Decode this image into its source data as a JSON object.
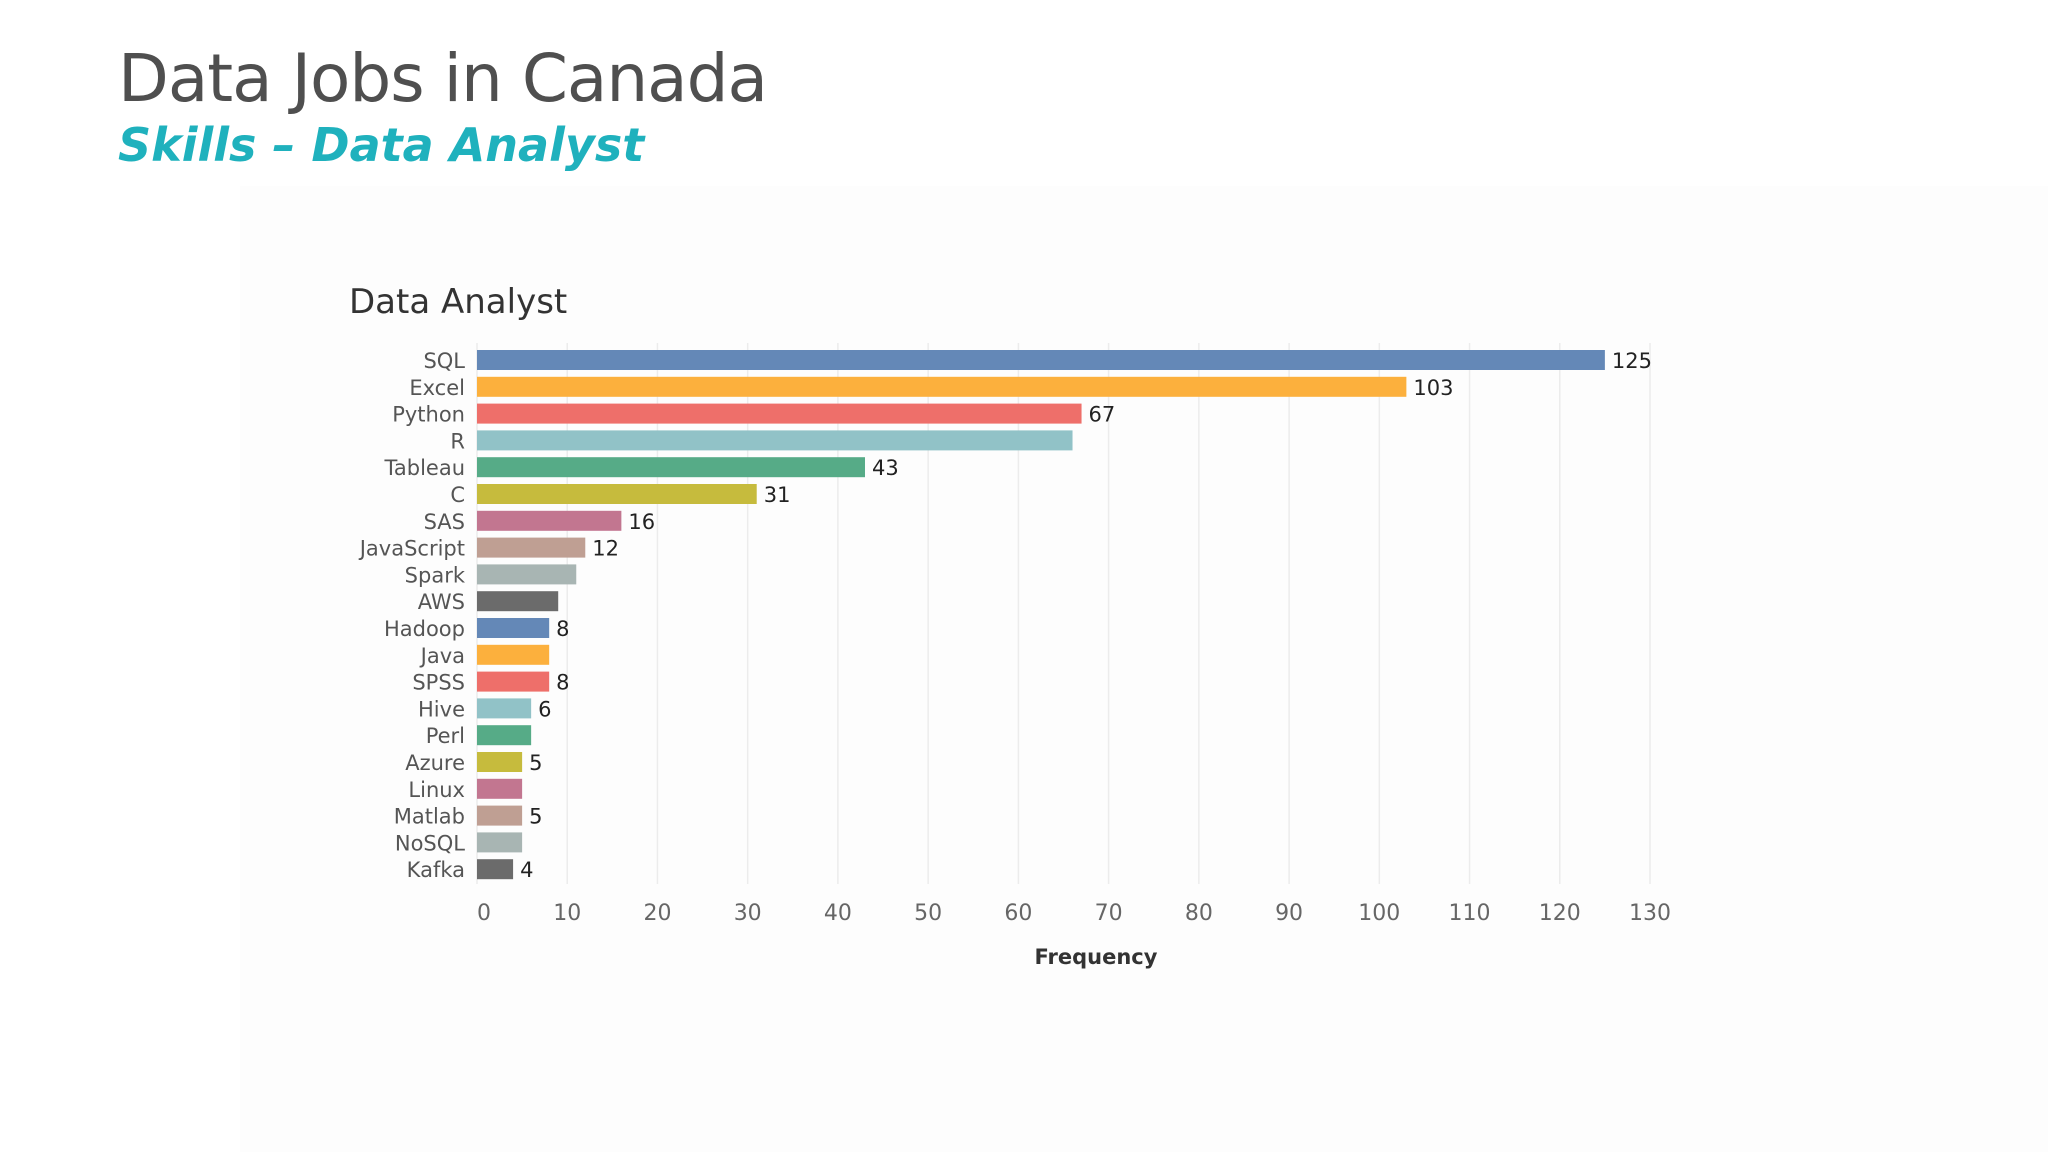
{
  "slide": {
    "title": "Data Jobs in Canada",
    "subtitle": "Skills – Data Analyst"
  },
  "colors": {
    "title": "#4f4f4f",
    "subtitle": "#1fb1bd",
    "palette": [
      "#6488b7",
      "#fcb03d",
      "#ee6f6a",
      "#91c2c7",
      "#56ab87",
      "#c6bb3d",
      "#c27690",
      "#bf9f93",
      "#a8b5b3",
      "#6b6b6b"
    ]
  },
  "chart_data": {
    "type": "bar",
    "orientation": "horizontal",
    "title": "Data Analyst",
    "xlabel": "Frequency",
    "ylabel": "",
    "xlim": [
      0,
      130
    ],
    "xticks": [
      0,
      10,
      20,
      30,
      40,
      50,
      60,
      70,
      80,
      90,
      100,
      110,
      120,
      130
    ],
    "grid": "vertical",
    "categories": [
      "SQL",
      "Excel",
      "Python",
      "R",
      "Tableau",
      "C",
      "SAS",
      "JavaScript",
      "Spark",
      "AWS",
      "Hadoop",
      "Java",
      "SPSS",
      "Hive",
      "Perl",
      "Azure",
      "Linux",
      "Matlab",
      "NoSQL",
      "Kafka"
    ],
    "values": [
      125,
      103,
      67,
      66,
      43,
      31,
      16,
      12,
      11,
      9,
      8,
      8,
      8,
      6,
      6,
      5,
      5,
      5,
      5,
      4
    ],
    "data_labels": [
      "125",
      "103",
      "67",
      "",
      "43",
      "31",
      "16",
      "12",
      "",
      "",
      "8",
      "",
      "8",
      "6",
      "",
      "5",
      "",
      "5",
      "",
      "4"
    ],
    "colors": [
      "#6488b7",
      "#fcb03d",
      "#ee6f6a",
      "#91c2c7",
      "#56ab87",
      "#c6bb3d",
      "#c27690",
      "#bf9f93",
      "#a8b5b3",
      "#6b6b6b",
      "#6488b7",
      "#fcb03d",
      "#ee6f6a",
      "#91c2c7",
      "#56ab87",
      "#c6bb3d",
      "#c27690",
      "#bf9f93",
      "#a8b5b3",
      "#6b6b6b"
    ]
  }
}
